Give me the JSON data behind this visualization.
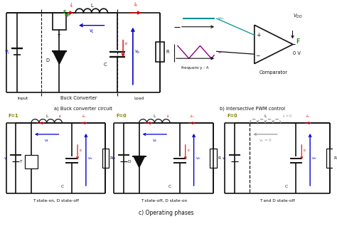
{
  "bg_color": "#ffffff",
  "title_a": "a) Buck converter circuit",
  "title_b": "b) Intersective PWM control",
  "title_c": "c) Operating phases",
  "sub1": "T state-on, D state-off",
  "sub2": "T state-off, D state-on",
  "sub3": "T and D state-off",
  "colors": {
    "red": "#dd0000",
    "blue": "#0000cc",
    "green": "#228B22",
    "olive": "#808000",
    "teal": "#009090",
    "purple": "#880088",
    "black": "#111111",
    "gray": "#999999"
  }
}
